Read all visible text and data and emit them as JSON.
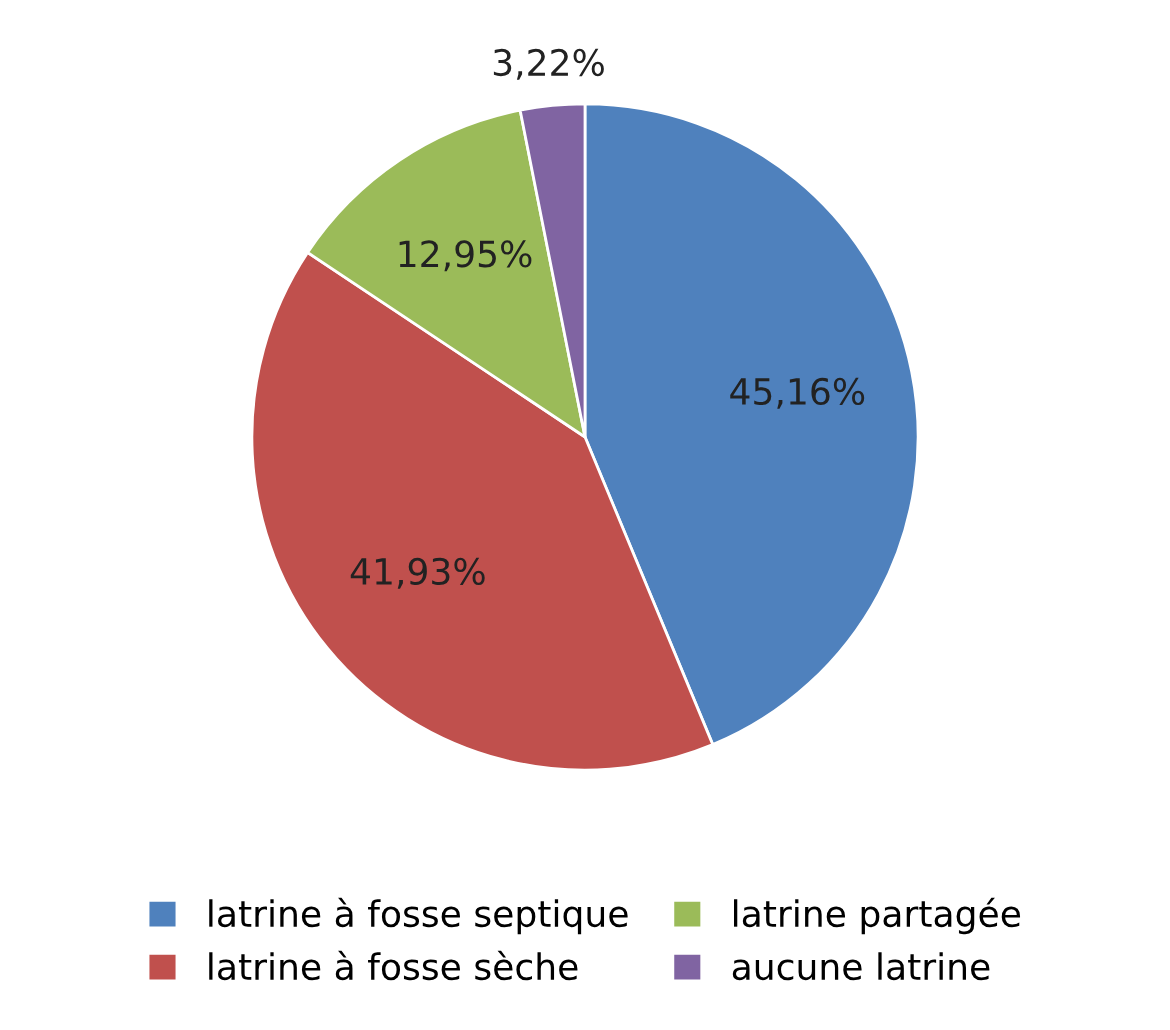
{
  "chart_data": {
    "type": "pie",
    "categories": [
      "latrine à fosse septique",
      "latrine à fosse sèche",
      "latrine partagée",
      "aucune latrine"
    ],
    "values": [
      45.16,
      41.93,
      12.95,
      3.22
    ],
    "value_labels": [
      "45,16%",
      "41,93%",
      "12,95%",
      "3,22%"
    ],
    "colors": [
      "#4f81bd",
      "#c0504d",
      "#9bbb59",
      "#8064a2"
    ],
    "legend": "bottom"
  }
}
